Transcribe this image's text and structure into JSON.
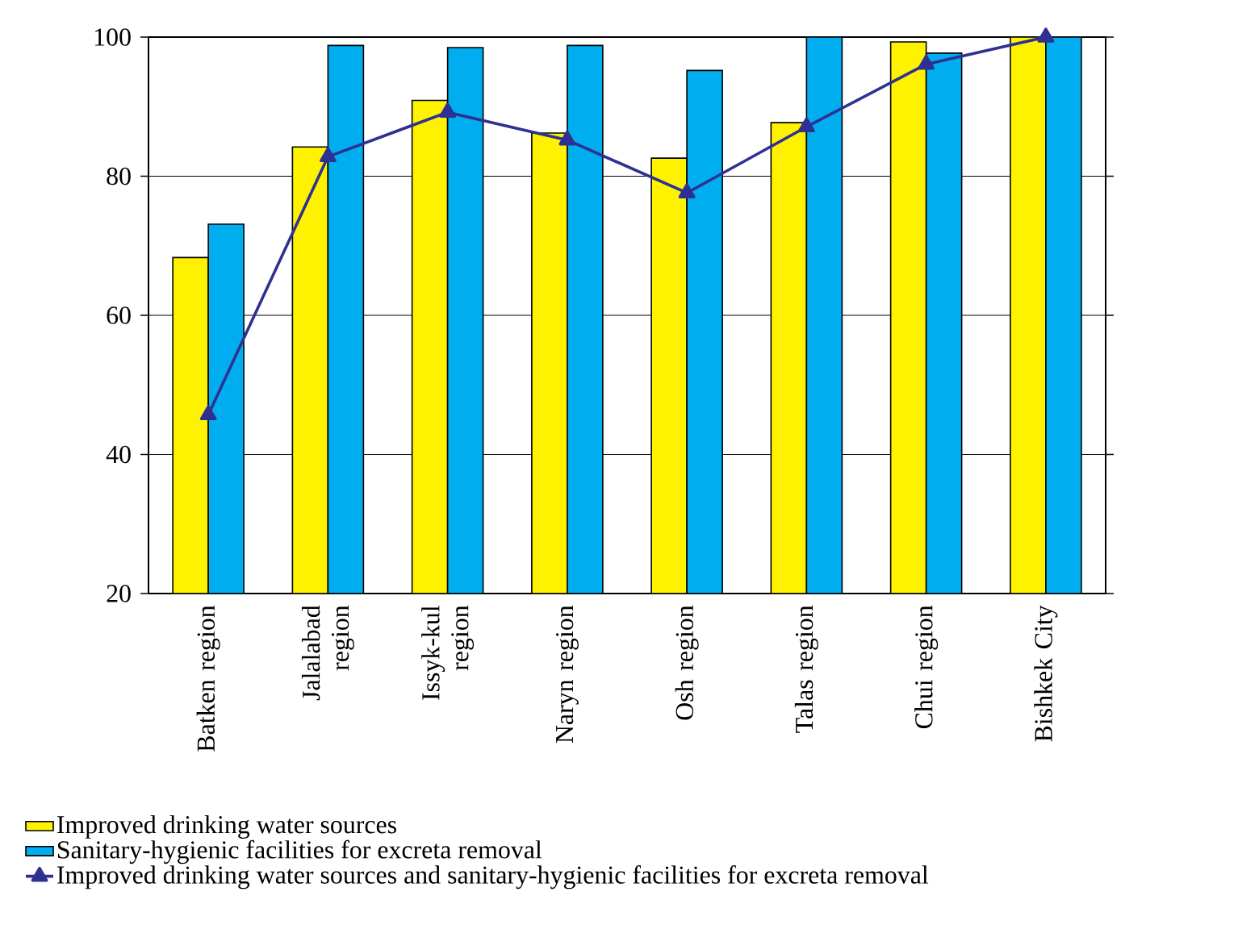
{
  "chart_data": {
    "type": "bar",
    "categories": [
      "Batken region",
      "Jalalabad region",
      "Issyk-kul region",
      "Naryn region",
      "Osh region",
      "Talas region",
      "Chui region",
      "Bishkek City"
    ],
    "series": [
      {
        "name": "Improved drinking water sources",
        "color": "#fff200",
        "values": [
          68.3,
          84.2,
          90.9,
          86.2,
          82.6,
          87.7,
          99.3,
          100
        ]
      },
      {
        "name": "Sanitary-hygienic facilities for excreta removal",
        "color": "#00aeef",
        "values": [
          73.1,
          98.8,
          98.5,
          98.8,
          95.2,
          100,
          97.7,
          100
        ]
      },
      {
        "name": "Improved drinking water sources and sanitary-hygienic facilities for excreta removal",
        "type": "line",
        "marker": "triangle",
        "color": "#2e3192",
        "values": [
          45.7,
          82.8,
          89.2,
          85.2,
          77.6,
          87.1,
          96.1,
          100
        ]
      }
    ],
    "ylim": [
      20,
      100
    ],
    "yticks": [
      20,
      40,
      60,
      80,
      100
    ],
    "grid": "y",
    "legend": "bottom"
  }
}
